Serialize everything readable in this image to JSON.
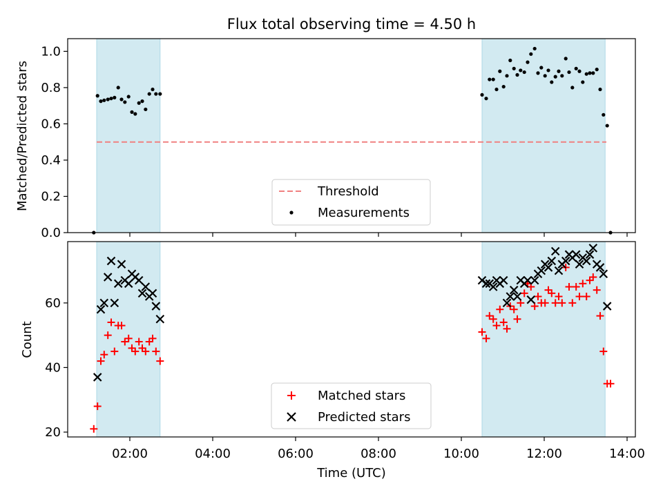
{
  "chart_data": [
    {
      "type": "scatter",
      "title": "Flux total observing time = 4.50 h",
      "xlabel": "",
      "ylabel": "Matched/Predicted stars",
      "xlim": [
        0.5,
        14.2
      ],
      "ylim": [
        0.0,
        1.07
      ],
      "yticks": [
        "0.0",
        "0.2",
        "0.4",
        "0.6",
        "0.8",
        "1.0"
      ],
      "ytick_values": [
        0.0,
        0.2,
        0.4,
        0.6,
        0.8,
        1.0
      ],
      "xtick_values": [
        2,
        4,
        6,
        8,
        10,
        12,
        14
      ],
      "grid": false,
      "legend_position": "lower-center",
      "shaded_intervals": [
        [
          1.2,
          2.73
        ],
        [
          10.5,
          13.47
        ]
      ],
      "threshold": {
        "name": "Threshold",
        "value": 0.5,
        "x": [
          1.2,
          13.5
        ],
        "color": "#f08080"
      },
      "measurements": {
        "name": "Measurements",
        "color": "#000000",
        "points": [
          [
            1.13,
            0.0
          ],
          [
            1.22,
            0.755
          ],
          [
            1.3,
            0.725
          ],
          [
            1.38,
            0.73
          ],
          [
            1.47,
            0.735
          ],
          [
            1.55,
            0.74
          ],
          [
            1.63,
            0.745
          ],
          [
            1.72,
            0.8
          ],
          [
            1.8,
            0.735
          ],
          [
            1.88,
            0.72
          ],
          [
            1.97,
            0.75
          ],
          [
            2.05,
            0.665
          ],
          [
            2.13,
            0.655
          ],
          [
            2.22,
            0.715
          ],
          [
            2.3,
            0.725
          ],
          [
            2.38,
            0.68
          ],
          [
            2.47,
            0.765
          ],
          [
            2.55,
            0.79
          ],
          [
            2.63,
            0.765
          ],
          [
            2.73,
            0.765
          ],
          [
            10.5,
            0.76
          ],
          [
            10.6,
            0.74
          ],
          [
            10.68,
            0.845
          ],
          [
            10.77,
            0.845
          ],
          [
            10.85,
            0.79
          ],
          [
            10.93,
            0.89
          ],
          [
            11.02,
            0.805
          ],
          [
            11.1,
            0.865
          ],
          [
            11.18,
            0.95
          ],
          [
            11.27,
            0.905
          ],
          [
            11.35,
            0.87
          ],
          [
            11.43,
            0.895
          ],
          [
            11.52,
            0.885
          ],
          [
            11.6,
            0.94
          ],
          [
            11.68,
            0.985
          ],
          [
            11.77,
            1.015
          ],
          [
            11.85,
            0.88
          ],
          [
            11.93,
            0.91
          ],
          [
            12.02,
            0.865
          ],
          [
            12.1,
            0.895
          ],
          [
            12.18,
            0.83
          ],
          [
            12.27,
            0.86
          ],
          [
            12.35,
            0.89
          ],
          [
            12.43,
            0.865
          ],
          [
            12.52,
            0.96
          ],
          [
            12.6,
            0.885
          ],
          [
            12.68,
            0.8
          ],
          [
            12.77,
            0.905
          ],
          [
            12.85,
            0.89
          ],
          [
            12.93,
            0.83
          ],
          [
            13.02,
            0.875
          ],
          [
            13.1,
            0.88
          ],
          [
            13.18,
            0.88
          ],
          [
            13.27,
            0.9
          ],
          [
            13.35,
            0.79
          ],
          [
            13.43,
            0.65
          ],
          [
            13.52,
            0.59
          ],
          [
            13.6,
            0.0
          ]
        ]
      }
    },
    {
      "type": "scatter",
      "title": "",
      "xlabel": "Time (UTC)",
      "ylabel": "Count",
      "xlim": [
        0.5,
        14.2
      ],
      "ylim": [
        18.5,
        79
      ],
      "yticks": [
        "20",
        "40",
        "60"
      ],
      "ytick_values": [
        20,
        40,
        60
      ],
      "xticks": [
        "02:00",
        "04:00",
        "06:00",
        "08:00",
        "10:00",
        "12:00",
        "14:00"
      ],
      "xtick_values": [
        2,
        4,
        6,
        8,
        10,
        12,
        14
      ],
      "grid": false,
      "legend_position": "lower-center",
      "shaded_intervals": [
        [
          1.2,
          2.73
        ],
        [
          10.5,
          13.47
        ]
      ],
      "series": [
        {
          "name": "Matched stars",
          "marker": "plus",
          "color": "#ff0000",
          "points": [
            [
              1.13,
              21
            ],
            [
              1.22,
              28
            ],
            [
              1.3,
              42
            ],
            [
              1.38,
              44
            ],
            [
              1.47,
              50
            ],
            [
              1.55,
              54
            ],
            [
              1.63,
              45
            ],
            [
              1.72,
              53
            ],
            [
              1.8,
              53
            ],
            [
              1.88,
              48
            ],
            [
              1.97,
              49
            ],
            [
              2.05,
              46
            ],
            [
              2.13,
              45
            ],
            [
              2.22,
              48
            ],
            [
              2.3,
              46
            ],
            [
              2.38,
              45
            ],
            [
              2.47,
              48
            ],
            [
              2.55,
              49
            ],
            [
              2.63,
              45
            ],
            [
              2.73,
              42
            ],
            [
              10.5,
              51
            ],
            [
              10.6,
              49
            ],
            [
              10.68,
              56
            ],
            [
              10.77,
              55
            ],
            [
              10.85,
              53
            ],
            [
              10.93,
              58
            ],
            [
              11.02,
              54
            ],
            [
              11.1,
              52
            ],
            [
              11.18,
              59
            ],
            [
              11.27,
              58
            ],
            [
              11.35,
              55
            ],
            [
              11.43,
              60
            ],
            [
              11.52,
              63
            ],
            [
              11.6,
              66
            ],
            [
              11.68,
              65
            ],
            [
              11.77,
              59
            ],
            [
              11.85,
              62
            ],
            [
              11.93,
              60
            ],
            [
              12.02,
              60
            ],
            [
              12.1,
              64
            ],
            [
              12.18,
              63
            ],
            [
              12.27,
              60
            ],
            [
              12.35,
              62
            ],
            [
              12.43,
              60
            ],
            [
              12.52,
              71
            ],
            [
              12.6,
              65
            ],
            [
              12.68,
              60
            ],
            [
              12.77,
              65
            ],
            [
              12.85,
              62
            ],
            [
              12.93,
              66
            ],
            [
              13.02,
              62
            ],
            [
              13.1,
              67
            ],
            [
              13.18,
              68
            ],
            [
              13.27,
              64
            ],
            [
              13.35,
              56
            ],
            [
              13.43,
              45
            ],
            [
              13.52,
              35
            ],
            [
              13.6,
              35
            ]
          ]
        },
        {
          "name": "Predicted stars",
          "marker": "x",
          "color": "#000000",
          "points": [
            [
              1.22,
              37
            ],
            [
              1.3,
              58
            ],
            [
              1.38,
              60
            ],
            [
              1.47,
              68
            ],
            [
              1.55,
              73
            ],
            [
              1.63,
              60
            ],
            [
              1.72,
              66
            ],
            [
              1.8,
              72
            ],
            [
              1.88,
              67
            ],
            [
              1.97,
              66
            ],
            [
              2.05,
              69
            ],
            [
              2.13,
              68
            ],
            [
              2.22,
              67
            ],
            [
              2.3,
              63
            ],
            [
              2.38,
              65
            ],
            [
              2.47,
              62
            ],
            [
              2.55,
              63
            ],
            [
              2.63,
              59
            ],
            [
              2.73,
              55
            ],
            [
              10.5,
              67
            ],
            [
              10.6,
              66
            ],
            [
              10.68,
              66
            ],
            [
              10.77,
              65
            ],
            [
              10.85,
              67
            ],
            [
              10.93,
              66
            ],
            [
              11.02,
              67
            ],
            [
              11.1,
              60
            ],
            [
              11.18,
              62
            ],
            [
              11.27,
              64
            ],
            [
              11.35,
              62
            ],
            [
              11.43,
              67
            ],
            [
              11.52,
              66
            ],
            [
              11.6,
              67
            ],
            [
              11.68,
              61
            ],
            [
              11.77,
              67
            ],
            [
              11.85,
              69
            ],
            [
              11.93,
              70
            ],
            [
              12.02,
              72
            ],
            [
              12.1,
              71
            ],
            [
              12.18,
              73
            ],
            [
              12.27,
              76
            ],
            [
              12.35,
              70
            ],
            [
              12.43,
              72
            ],
            [
              12.52,
              73
            ],
            [
              12.6,
              75
            ],
            [
              12.68,
              74
            ],
            [
              12.77,
              75
            ],
            [
              12.85,
              72
            ],
            [
              12.93,
              74
            ],
            [
              13.02,
              73
            ],
            [
              13.1,
              75
            ],
            [
              13.18,
              77
            ],
            [
              13.27,
              72
            ],
            [
              13.35,
              71
            ],
            [
              13.43,
              69
            ],
            [
              13.52,
              59
            ]
          ]
        }
      ]
    }
  ],
  "colors": {
    "shade": "#add8e6",
    "threshold": "#f08080",
    "matched": "#ff0000",
    "predicted": "#000000",
    "axes": "#000000"
  }
}
